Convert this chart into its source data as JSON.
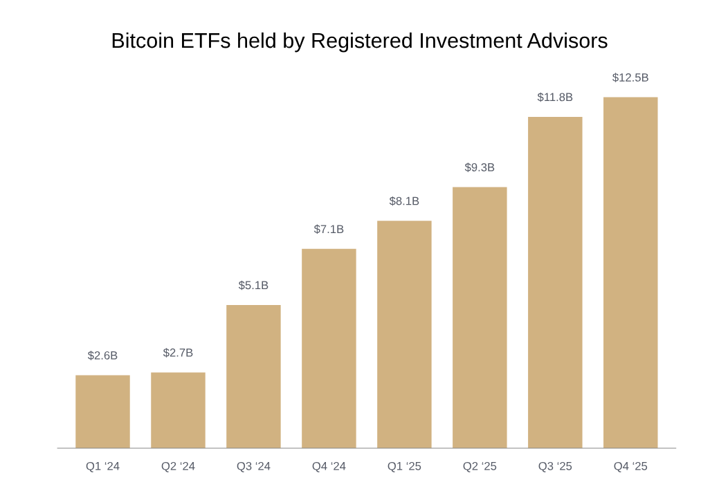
{
  "chart_data": {
    "type": "bar",
    "title": "Bitcoin ETFs held by Registered Investment Advisors",
    "categories": [
      "Q1 ‘24",
      "Q2 ‘24",
      "Q3 ‘24",
      "Q4 ‘24",
      "Q1 ‘25",
      "Q2 ‘25",
      "Q3 ‘25",
      "Q4 ‘25"
    ],
    "values": [
      2.6,
      2.7,
      5.1,
      7.1,
      8.1,
      9.3,
      11.8,
      12.5
    ],
    "value_labels": [
      "$2.6B",
      "$2.7B",
      "$5.1B",
      "$7.1B",
      "$8.1B",
      "$9.3B",
      "$11.8B",
      "$12.5B"
    ],
    "color": "#d1b281",
    "grid": false,
    "tick_labels": "x"
  }
}
